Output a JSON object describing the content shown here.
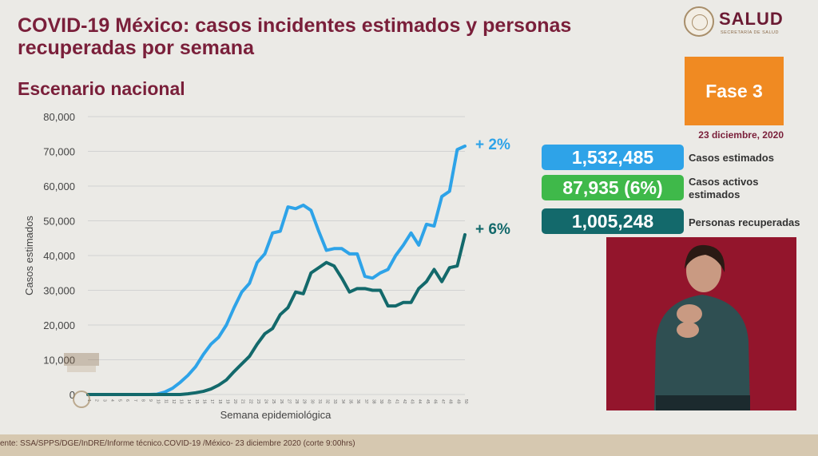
{
  "header": {
    "title": "COVID-19 México: casos incidentes estimados y personas recuperadas por semana",
    "subtitle": "Escenario nacional",
    "logo_text": "SALUD",
    "logo_subtext": "SECRETARÍA DE SALUD"
  },
  "phase": {
    "label": "Fase 3",
    "color": "#f08a22"
  },
  "date": "23 diciembre, 2020",
  "stats": [
    {
      "value": "1,532,485",
      "label": "Casos estimados",
      "color": "#2ea3e8"
    },
    {
      "value": "87,935 (6%)",
      "label": "Casos activos estimados",
      "color": "#3fb94a"
    },
    {
      "value": "1,005,248",
      "label": "Personas recuperadas",
      "color": "#13696b"
    }
  ],
  "footer": "ente: SSA/SPPS/DGE/InDRE/Informe técnico.COVID-19 /México- 23 diciembre 2020 (corte 9:00hrs)",
  "chart_data": {
    "type": "line",
    "xlabel": "Semana epidemiológica",
    "ylabel": "Casos estimados",
    "ylim": [
      0,
      80000
    ],
    "yticks": [
      "0",
      "10,000",
      "20,000",
      "30,000",
      "40,000",
      "50,000",
      "60,000",
      "70,000",
      "80,000"
    ],
    "grid": true,
    "x": [
      1,
      2,
      3,
      4,
      5,
      6,
      7,
      8,
      9,
      10,
      11,
      12,
      13,
      14,
      15,
      16,
      17,
      18,
      19,
      20,
      21,
      22,
      23,
      24,
      25,
      26,
      27,
      28,
      29,
      30,
      31,
      32,
      33,
      34,
      35,
      36,
      37,
      38,
      39,
      40,
      41,
      42,
      43,
      44,
      45,
      46,
      47,
      48,
      49,
      50
    ],
    "series": [
      {
        "name": "Casos estimados",
        "color": "#2ea3e8",
        "annotation": "+ 2%",
        "values": [
          0,
          0,
          0,
          0,
          0,
          0,
          0,
          0,
          0,
          100,
          700,
          1800,
          3500,
          5500,
          8000,
          11500,
          14500,
          16500,
          20000,
          25000,
          29500,
          32000,
          38000,
          40500,
          46500,
          47000,
          54000,
          53500,
          54500,
          53000,
          47000,
          41500,
          42000,
          42000,
          40500,
          40500,
          34000,
          33500,
          35000,
          36000,
          40000,
          43000,
          46500,
          43000,
          49000,
          48500,
          57000,
          58500,
          70500,
          71500
        ]
      },
      {
        "name": "Personas recuperadas",
        "color": "#13696b",
        "annotation": "+ 6%",
        "values": [
          0,
          0,
          0,
          0,
          0,
          0,
          0,
          0,
          0,
          0,
          0,
          0,
          0,
          200,
          500,
          900,
          1600,
          2700,
          4200,
          6600,
          8800,
          11000,
          14500,
          17500,
          19000,
          23000,
          25000,
          29500,
          29000,
          35000,
          36500,
          38000,
          37000,
          33500,
          29500,
          30500,
          30500,
          30000,
          30000,
          25500,
          25500,
          26500,
          26500,
          30500,
          32500,
          36000,
          32500,
          36500,
          37000,
          46000
        ]
      }
    ]
  }
}
